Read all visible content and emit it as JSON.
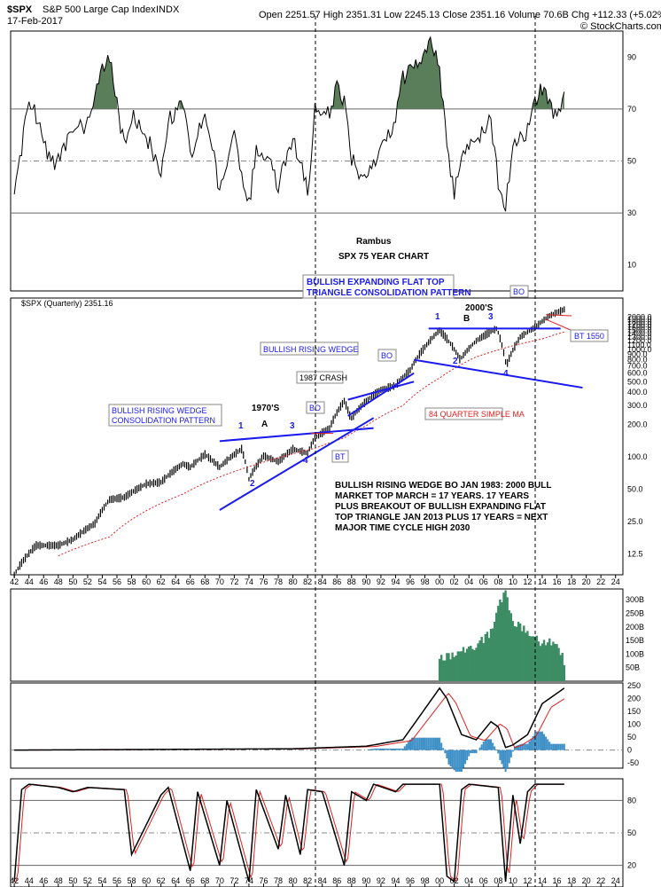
{
  "header": {
    "symbol": "$SPX",
    "name": "S&P 500 Large Cap Index",
    "exchange": "INDX",
    "date": "17-Feb-2017",
    "quote": "Open 2251.57  High 2351.31  Low 2245.13  Close 2351.16  Volume 70.6B  Chg +112.33 (+5.02%)",
    "credit": "© StockCharts.com"
  },
  "price_legend": "$SPX (Quarterly) 2351.16",
  "titles": {
    "author": "Rambus",
    "chart": "SPX 75 YEAR CHART"
  },
  "annotations": {
    "expanding_title": [
      "BULLISH EXPANDING FLAT TOP",
      "TRIANGLE CONSOLIDATION PATTERN"
    ],
    "rising_wedge_1": [
      "BULLISH RISING WEDGE",
      "CONSOLIDATION PATTERN"
    ],
    "rising_wedge_2": "BULLISH RISING WEDGE",
    "crash": "1987 CRASH",
    "seventies": "1970'S",
    "letter_a": "A",
    "two_thousands": "2000'S",
    "letter_b": "B",
    "bo": "BO",
    "bt": "BT",
    "bt_1550": "BT 1550",
    "ma_label": "84 QUARTER SIMPLE MA",
    "n1": "1",
    "n2": "2",
    "n3": "3",
    "n4": "4",
    "note": [
      "BULLISH RISING WEDGE BO JAN 1983:  2000 BULL",
      "MARKET TOP MARCH = 17 YEARS.  17 YEARS",
      "PLUS BREAKOUT OF BULLISH EXPANDING FLAT",
      "TOP TRIANGLE  JAN 2013 PLUS 17 YEARS = NEXT",
      "MAJOR TIME CYCLE HIGH 2030"
    ]
  },
  "x_axis_labels": [
    "42",
    "44",
    "46",
    "48",
    "50",
    "52",
    "54",
    "56",
    "58",
    "60",
    "62",
    "64",
    "66",
    "68",
    "70",
    "72",
    "74",
    "76",
    "78",
    "80",
    "82",
    "84",
    "86",
    "88",
    "90",
    "92",
    "94",
    "96",
    "98",
    "00",
    "02",
    "04",
    "06",
    "08",
    "10",
    "12",
    "14",
    "16",
    "18",
    "20",
    "22",
    "24"
  ],
  "rsi_axis": [
    "10",
    "30",
    "50",
    "70",
    "90"
  ],
  "price_axis": [
    "2000.0",
    "1900.0",
    "1800.0",
    "1700.0",
    "1600.0",
    "1500.0",
    "1400.0",
    "1300.0",
    "1200.0",
    "1100.0",
    "1000.0",
    "900.0",
    "800.0",
    "700.0",
    "600.0",
    "500.0",
    "400.0",
    "300.0",
    "200.0",
    "100.0",
    "50.0",
    "25.0",
    "12.5"
  ],
  "volume_axis": [
    "50B",
    "100B",
    "150B",
    "200B",
    "250B",
    "300B"
  ],
  "macd_axis": [
    "-50",
    "0",
    "50",
    "100",
    "150",
    "200",
    "250"
  ],
  "stoch_axis": [
    "20",
    "50",
    "80"
  ],
  "colors": {
    "blue": "#1a1aee",
    "red": "#e02020",
    "rsi_fill": "#5a7d5a",
    "volume": "#3c8c64",
    "hist": "#3b8fc6"
  },
  "chart_data": {
    "type": "line",
    "title": "SPX 75 YEAR CHART",
    "scale": "log",
    "price_x": [
      1942,
      1945,
      1948,
      1950,
      1953,
      1955,
      1957,
      1960,
      1962,
      1965,
      1966,
      1968,
      1970,
      1973,
      1974,
      1976,
      1978,
      1980,
      1982,
      1983,
      1985,
      1987,
      1987.9,
      1990,
      1992,
      1994,
      1996,
      1998,
      2000,
      2002.8,
      2005,
      2007.8,
      2009.1,
      2011,
      2013,
      2015,
      2017
    ],
    "price_y": [
      8,
      15,
      15,
      17,
      24,
      40,
      42,
      56,
      58,
      86,
      80,
      105,
      80,
      118,
      62,
      102,
      90,
      118,
      108,
      150,
      185,
      330,
      225,
      330,
      420,
      460,
      640,
      1050,
      1500,
      800,
      1200,
      1560,
      700,
      1300,
      1600,
      2050,
      2351
    ],
    "ma_x": [
      1948,
      1955,
      1965,
      1975,
      1983,
      1987,
      1990,
      1995,
      2000,
      2005,
      2010,
      2014,
      2017
    ],
    "ma_y": [
      12,
      18,
      45,
      85,
      120,
      150,
      195,
      300,
      540,
      850,
      1080,
      1250,
      1450
    ],
    "rsi_x": [
      1942,
      1943,
      1944,
      1946,
      1947,
      1948,
      1950,
      1952,
      1954,
      1955,
      1956,
      1957,
      1958,
      1960,
      1962,
      1963,
      1965,
      1966,
      1968,
      1969,
      1970,
      1972,
      1974,
      1975,
      1977,
      1978,
      1980,
      1982,
      1983,
      1985,
      1986,
      1987,
      1988,
      1990,
      1992,
      1994,
      1995,
      1996,
      1997,
      1998,
      1999,
      2000,
      2001,
      2002,
      2003,
      2005,
      2007,
      2008,
      2009,
      2010,
      2011,
      2012,
      2013,
      2014,
      2015,
      2016,
      2017
    ],
    "rsi_y": [
      38,
      55,
      75,
      58,
      48,
      52,
      62,
      64,
      84,
      90,
      72,
      55,
      68,
      60,
      45,
      65,
      72,
      52,
      68,
      55,
      38,
      60,
      33,
      55,
      50,
      40,
      60,
      38,
      70,
      68,
      80,
      72,
      50,
      42,
      55,
      65,
      82,
      85,
      88,
      90,
      96,
      85,
      55,
      38,
      52,
      58,
      66,
      42,
      32,
      55,
      58,
      62,
      72,
      78,
      72,
      66,
      77
    ],
    "volume_x": [
      2000,
      2003,
      2005,
      2007,
      2008,
      2009,
      2010,
      2012,
      2014,
      2016,
      2017
    ],
    "volume_y": [
      80,
      110,
      130,
      180,
      280,
      330,
      220,
      180,
      140,
      150,
      70
    ],
    "macd_x": [
      1942,
      1980,
      1990,
      1995,
      1998,
      2000,
      2001,
      2003,
      2005,
      2007,
      2008,
      2009,
      2010,
      2012,
      2014,
      2016,
      2017
    ],
    "macd_y": [
      0,
      5,
      15,
      40,
      160,
      240,
      200,
      60,
      40,
      110,
      90,
      10,
      20,
      60,
      180,
      220,
      240
    ],
    "stoch_x": [
      1942,
      1943,
      1944,
      1948,
      1950,
      1952,
      1957,
      1958,
      1962,
      1963,
      1966,
      1967,
      1970,
      1971,
      1974,
      1975,
      1978,
      1979,
      1981,
      1982,
      1984,
      1987,
      1988,
      1990,
      1991,
      1994,
      1995,
      2000,
      2001,
      2002,
      2003,
      2004,
      2008,
      2009,
      2010,
      2011,
      2012,
      2013,
      2017
    ],
    "stoch_y": [
      5,
      90,
      95,
      92,
      88,
      92,
      90,
      30,
      85,
      92,
      15,
      88,
      20,
      80,
      5,
      90,
      35,
      85,
      30,
      90,
      88,
      20,
      88,
      80,
      95,
      88,
      95,
      95,
      10,
      5,
      90,
      95,
      92,
      5,
      85,
      40,
      88,
      95,
      95
    ]
  }
}
